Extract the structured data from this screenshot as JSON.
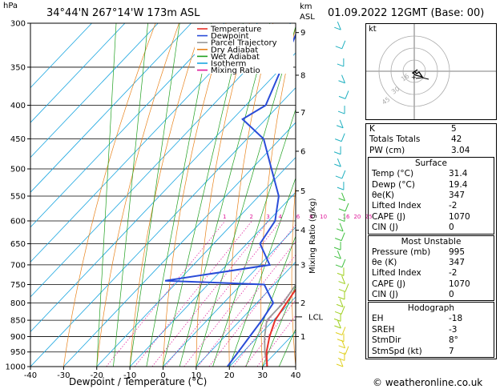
{
  "header": {
    "pressure_unit": "hPa",
    "location": "34°44'N  267°14'W  173m  ASL",
    "height_unit": "km",
    "height_unit2": "ASL",
    "datetime": "01.09.2022  12GMT  (Base: 00)"
  },
  "legend": [
    {
      "label": "Temperature",
      "color": "#e8312a"
    },
    {
      "label": "Dewpoint",
      "color": "#2a4cd8"
    },
    {
      "label": "Parcel Trajectory",
      "color": "#999999"
    },
    {
      "label": "Dry Adiabat",
      "color": "#e8821a"
    },
    {
      "label": "Wet Adiabat",
      "color": "#20a020"
    },
    {
      "label": "Isotherm",
      "color": "#1aa6e0"
    },
    {
      "label": "Mixing Ratio",
      "color": "#e0189a"
    }
  ],
  "chart_data": {
    "type": "line",
    "xlabel": "Dewpoint / Temperature (°C)",
    "ylabel": "hPa",
    "right_axis_label": "Mixing Ratio (g/kg)",
    "x_ticks": [
      "-40",
      "-30",
      "-20",
      "-10",
      "0",
      "10",
      "20",
      "30",
      "40"
    ],
    "pressure_levels": [
      "300",
      "350",
      "400",
      "450",
      "500",
      "550",
      "600",
      "650",
      "700",
      "750",
      "800",
      "850",
      "900",
      "950",
      "1000"
    ],
    "height_ticks": [
      {
        "p": 310,
        "label": "9"
      },
      {
        "p": 360,
        "label": "8"
      },
      {
        "p": 410,
        "label": "7"
      },
      {
        "p": 470,
        "label": "6"
      },
      {
        "p": 540,
        "label": "5"
      },
      {
        "p": 620,
        "label": "4"
      },
      {
        "p": 700,
        "label": "3"
      },
      {
        "p": 800,
        "label": "2"
      },
      {
        "p": 900,
        "label": "1"
      }
    ],
    "lcl_label": "LCL",
    "lcl_pressure": 840,
    "mixing_ratio_labels": [
      "1",
      "2",
      "3",
      "4",
      "6",
      "8",
      "10",
      "16",
      "20",
      "25"
    ],
    "xlim": [
      -40,
      40
    ],
    "ylim": [
      1000,
      300
    ],
    "series": [
      {
        "name": "Temperature",
        "points": [
          [
            1000,
            31.4
          ],
          [
            950,
            27
          ],
          [
            900,
            23.5
          ],
          [
            850,
            20.5
          ],
          [
            800,
            19
          ],
          [
            750,
            17.5
          ],
          [
            700,
            13
          ],
          [
            650,
            9
          ],
          [
            600,
            5
          ],
          [
            550,
            0.5
          ],
          [
            500,
            -5
          ],
          [
            450,
            -10
          ],
          [
            400,
            -17
          ],
          [
            350,
            -26
          ],
          [
            300,
            -36
          ]
        ]
      },
      {
        "name": "Dewpoint",
        "points": [
          [
            1000,
            19.4
          ],
          [
            950,
            18.5
          ],
          [
            900,
            17.5
          ],
          [
            850,
            16.5
          ],
          [
            800,
            15
          ],
          [
            750,
            7
          ],
          [
            740,
            -24
          ],
          [
            700,
            3
          ],
          [
            650,
            -6
          ],
          [
            600,
            -8
          ],
          [
            550,
            -14
          ],
          [
            500,
            -24
          ],
          [
            450,
            -35
          ],
          [
            420,
            -47
          ],
          [
            400,
            -44
          ],
          [
            350,
            -50
          ],
          [
            300,
            -57
          ]
        ]
      },
      {
        "name": "Parcel Trajectory",
        "points": [
          [
            1000,
            31.4
          ],
          [
            950,
            26.5
          ],
          [
            900,
            22
          ],
          [
            850,
            18
          ],
          [
            800,
            18
          ],
          [
            750,
            16.5
          ],
          [
            700,
            14
          ],
          [
            650,
            10.5
          ],
          [
            600,
            6.5
          ],
          [
            550,
            2
          ],
          [
            500,
            -3
          ],
          [
            450,
            -9
          ],
          [
            400,
            -16
          ],
          [
            350,
            -24
          ],
          [
            300,
            -33
          ]
        ]
      }
    ]
  },
  "indices": {
    "top": [
      {
        "label": "K",
        "value": "5"
      },
      {
        "label": "Totals Totals",
        "value": "42"
      },
      {
        "label": "PW (cm)",
        "value": "3.04"
      }
    ],
    "surface": {
      "title": "Surface",
      "rows": [
        {
          "label": "Temp (°C)",
          "value": "31.4"
        },
        {
          "label": "Dewp (°C)",
          "value": "19.4"
        },
        {
          "label": "θe(K)",
          "value": "347"
        },
        {
          "label": "Lifted Index",
          "value": "-2"
        },
        {
          "label": "CAPE (J)",
          "value": "1070"
        },
        {
          "label": "CIN (J)",
          "value": "0"
        }
      ]
    },
    "unstable": {
      "title": "Most Unstable",
      "rows": [
        {
          "label": "Pressure (mb)",
          "value": "995"
        },
        {
          "label": "θe (K)",
          "value": "347"
        },
        {
          "label": "Lifted Index",
          "value": "-2"
        },
        {
          "label": "CAPE (J)",
          "value": "1070"
        },
        {
          "label": "CIN (J)",
          "value": "0"
        }
      ]
    },
    "hodograph": {
      "title": "Hodograph",
      "rows": [
        {
          "label": "EH",
          "value": "-18"
        },
        {
          "label": "SREH",
          "value": "-3"
        },
        {
          "label": "StmDir",
          "value": "8°"
        },
        {
          "label": "StmSpd (kt)",
          "value": "7"
        }
      ]
    }
  },
  "hodo_panel": {
    "unit": "kt",
    "ring_labels": [
      "16",
      "30",
      "45"
    ]
  },
  "footer": {
    "copyright": "© weatheronline.co.uk"
  }
}
